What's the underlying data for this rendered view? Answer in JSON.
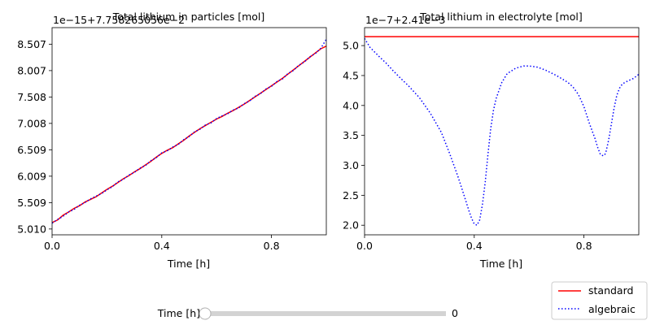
{
  "chart_data": [
    {
      "type": "line",
      "title": "Total lithium in particles [mol]",
      "offset_text": "1e−15+7.758265056e−2",
      "xlabel": "Time [h]",
      "ylabel": "",
      "xlim": [
        0,
        1
      ],
      "ylim": [
        4.9,
        8.82
      ],
      "x_ticks": [
        0.0,
        0.4,
        0.8
      ],
      "x_tick_labels": [
        "0.0",
        "0.4",
        "0.8"
      ],
      "y_ticks": [
        5.01,
        5.509,
        6.009,
        6.509,
        7.008,
        7.508,
        8.007,
        8.507
      ],
      "y_tick_labels": [
        "5.010",
        "5.509",
        "6.009",
        "6.509",
        "7.008",
        "7.508",
        "8.007",
        "8.507"
      ],
      "series": [
        {
          "name": "standard",
          "color": "#ff0000",
          "style": "solid",
          "x": [
            0.0,
            0.02,
            0.04,
            0.06,
            0.08,
            0.1,
            0.12,
            0.14,
            0.16,
            0.18,
            0.2,
            0.22,
            0.24,
            0.26,
            0.28,
            0.3,
            0.32,
            0.34,
            0.36,
            0.38,
            0.4,
            0.42,
            0.44,
            0.46,
            0.48,
            0.5,
            0.52,
            0.54,
            0.56,
            0.58,
            0.6,
            0.62,
            0.64,
            0.66,
            0.68,
            0.7,
            0.72,
            0.74,
            0.76,
            0.78,
            0.8,
            0.82,
            0.84,
            0.86,
            0.88,
            0.9,
            0.92,
            0.94,
            0.96,
            0.98,
            1.0
          ],
          "y": [
            5.13,
            5.18,
            5.27,
            5.33,
            5.4,
            5.45,
            5.52,
            5.57,
            5.62,
            5.69,
            5.76,
            5.82,
            5.89,
            5.96,
            6.02,
            6.09,
            6.15,
            6.22,
            6.29,
            6.37,
            6.44,
            6.5,
            6.55,
            6.62,
            6.69,
            6.77,
            6.84,
            6.91,
            6.97,
            7.03,
            7.09,
            7.14,
            7.2,
            7.25,
            7.31,
            7.37,
            7.44,
            7.51,
            7.58,
            7.65,
            7.72,
            7.79,
            7.86,
            7.94,
            8.02,
            8.1,
            8.18,
            8.26,
            8.34,
            8.42,
            8.47
          ]
        },
        {
          "name": "algebraic",
          "color": "#0000ff",
          "style": "dotted",
          "x": [
            0.0,
            0.02,
            0.04,
            0.06,
            0.08,
            0.1,
            0.12,
            0.14,
            0.16,
            0.18,
            0.2,
            0.22,
            0.24,
            0.26,
            0.28,
            0.3,
            0.32,
            0.34,
            0.36,
            0.38,
            0.4,
            0.42,
            0.44,
            0.46,
            0.48,
            0.5,
            0.52,
            0.54,
            0.56,
            0.58,
            0.6,
            0.62,
            0.64,
            0.66,
            0.68,
            0.7,
            0.72,
            0.74,
            0.76,
            0.78,
            0.8,
            0.82,
            0.84,
            0.86,
            0.88,
            0.9,
            0.92,
            0.94,
            0.96,
            0.98,
            1.0
          ],
          "y": [
            5.12,
            5.19,
            5.25,
            5.33,
            5.38,
            5.46,
            5.51,
            5.58,
            5.63,
            5.68,
            5.75,
            5.81,
            5.9,
            5.95,
            6.03,
            6.08,
            6.16,
            6.21,
            6.3,
            6.36,
            6.45,
            6.49,
            6.56,
            6.61,
            6.7,
            6.76,
            6.85,
            6.9,
            6.98,
            7.02,
            7.1,
            7.15,
            7.19,
            7.26,
            7.3,
            7.38,
            7.43,
            7.52,
            7.57,
            7.66,
            7.71,
            7.8,
            7.85,
            7.95,
            8.01,
            8.11,
            8.17,
            8.27,
            8.33,
            8.43,
            8.6
          ]
        }
      ]
    },
    {
      "type": "line",
      "title": "Total lithium in electrolyte [mol]",
      "offset_text": "1e−7+2.41e−3",
      "xlabel": "Time [h]",
      "ylabel": "",
      "xlim": [
        0,
        1
      ],
      "ylim": [
        1.84,
        5.3
      ],
      "x_ticks": [
        0.0,
        0.4,
        0.8
      ],
      "x_tick_labels": [
        "0.0",
        "0.4",
        "0.8"
      ],
      "y_ticks": [
        2.0,
        2.5,
        3.0,
        3.5,
        4.0,
        4.5,
        5.0
      ],
      "y_tick_labels": [
        "2.0",
        "2.5",
        "3.0",
        "3.5",
        "4.0",
        "4.5",
        "5.0"
      ],
      "series": [
        {
          "name": "standard",
          "color": "#ff0000",
          "style": "solid",
          "x": [
            0.0,
            1.0
          ],
          "y": [
            5.15,
            5.15
          ]
        },
        {
          "name": "algebraic",
          "color": "#0000ff",
          "style": "dotted",
          "x": [
            0.0,
            0.02,
            0.05,
            0.08,
            0.1,
            0.13,
            0.16,
            0.2,
            0.24,
            0.28,
            0.31,
            0.34,
            0.36,
            0.38,
            0.39,
            0.4,
            0.41,
            0.42,
            0.43,
            0.44,
            0.45,
            0.46,
            0.47,
            0.48,
            0.5,
            0.52,
            0.55,
            0.58,
            0.6,
            0.63,
            0.66,
            0.7,
            0.74,
            0.76,
            0.78,
            0.8,
            0.82,
            0.84,
            0.85,
            0.86,
            0.87,
            0.875,
            0.88,
            0.89,
            0.9,
            0.91,
            0.92,
            0.93,
            0.94,
            0.96,
            0.98,
            1.0
          ],
          "y": [
            5.12,
            4.97,
            4.83,
            4.7,
            4.6,
            4.46,
            4.33,
            4.13,
            3.87,
            3.55,
            3.2,
            2.82,
            2.54,
            2.25,
            2.12,
            2.02,
            2.0,
            2.09,
            2.35,
            2.72,
            3.18,
            3.61,
            3.92,
            4.12,
            4.38,
            4.53,
            4.62,
            4.66,
            4.66,
            4.64,
            4.59,
            4.5,
            4.39,
            4.31,
            4.18,
            3.98,
            3.7,
            3.45,
            3.3,
            3.18,
            3.16,
            3.17,
            3.22,
            3.42,
            3.69,
            3.96,
            4.17,
            4.29,
            4.36,
            4.41,
            4.45,
            4.52
          ]
        }
      ]
    }
  ],
  "legend": {
    "placement": "bottom-right",
    "entries": [
      {
        "label": "standard",
        "color": "#ff0000",
        "style": "solid"
      },
      {
        "label": "algebraic",
        "color": "#0000ff",
        "style": "dotted"
      }
    ]
  },
  "slider": {
    "label": "Time [h]",
    "value": 0,
    "value_text": "0",
    "min": 0,
    "max": 1,
    "fill_color": "#d3d3d3"
  }
}
